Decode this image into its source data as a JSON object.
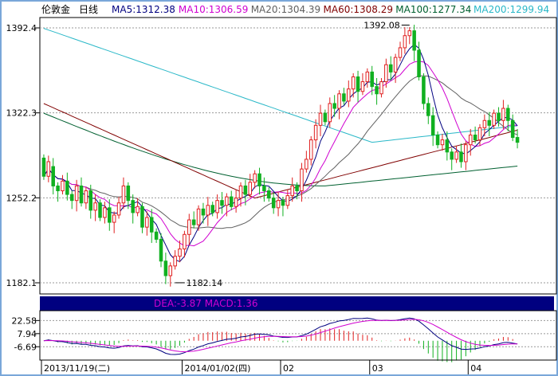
{
  "header": {
    "instrument": "伦敦金",
    "period": "日线",
    "ma": [
      {
        "label": "MA5:1312.38",
        "color": "#000080"
      },
      {
        "label": "MA10:1306.59",
        "color": "#d000d0"
      },
      {
        "label": "MA20:1304.39",
        "color": "#606060"
      },
      {
        "label": "MA60:1308.29",
        "color": "#800000"
      },
      {
        "label": "MA100:1277.34",
        "color": "#006030"
      },
      {
        "label": "MA200:1299.94",
        "color": "#2ab8c8"
      }
    ]
  },
  "chart_data": [
    {
      "type": "candlestick",
      "ylim": [
        1175,
        1405
      ],
      "y_ticks": [
        {
          "value": 1392.4,
          "label": "1392.4"
        },
        {
          "value": 1322.3,
          "label": "1322.3"
        },
        {
          "value": 1252.2,
          "label": "1252.2"
        },
        {
          "value": 1182.1,
          "label": "1182.1"
        }
      ],
      "x_ticks": [
        {
          "index": 0,
          "label": "2013/11/19(二)"
        },
        {
          "index": 30,
          "label": "2014/01/02(四)"
        },
        {
          "index": 51,
          "label": "02"
        },
        {
          "index": 70,
          "label": "03"
        },
        {
          "index": 91,
          "label": "04"
        }
      ],
      "annotations": [
        {
          "label": "1392.08",
          "index": 78,
          "value": 1392.08
        },
        {
          "label": "1182.14",
          "index": 28,
          "value": 1182.14
        }
      ],
      "candle_colors": {
        "up": "#e02020",
        "down": "#10b020"
      },
      "candles_o_c": [
        [
          1285,
          1270
        ],
        [
          1270,
          1282
        ],
        [
          1278,
          1262
        ],
        [
          1262,
          1258
        ],
        [
          1258,
          1266
        ],
        [
          1266,
          1255
        ],
        [
          1255,
          1250
        ],
        [
          1250,
          1262
        ],
        [
          1262,
          1248
        ],
        [
          1248,
          1258
        ],
        [
          1258,
          1242
        ],
        [
          1242,
          1248
        ],
        [
          1248,
          1236
        ],
        [
          1236,
          1244
        ],
        [
          1244,
          1232
        ],
        [
          1232,
          1238
        ],
        [
          1238,
          1248
        ],
        [
          1248,
          1262
        ],
        [
          1262,
          1250
        ],
        [
          1250,
          1240
        ],
        [
          1240,
          1245
        ],
        [
          1245,
          1228
        ],
        [
          1228,
          1236
        ],
        [
          1236,
          1224
        ],
        [
          1224,
          1218
        ],
        [
          1218,
          1200
        ],
        [
          1200,
          1188
        ],
        [
          1188,
          1196
        ],
        [
          1196,
          1204
        ],
        [
          1204,
          1210
        ],
        [
          1210,
          1222
        ],
        [
          1222,
          1234
        ],
        [
          1234,
          1230
        ],
        [
          1230,
          1243
        ],
        [
          1243,
          1238
        ],
        [
          1238,
          1246
        ],
        [
          1246,
          1240
        ],
        [
          1240,
          1250
        ],
        [
          1250,
          1246
        ],
        [
          1246,
          1253
        ],
        [
          1253,
          1245
        ],
        [
          1245,
          1252
        ],
        [
          1252,
          1262
        ],
        [
          1262,
          1255
        ],
        [
          1255,
          1265
        ],
        [
          1265,
          1272
        ],
        [
          1272,
          1262
        ],
        [
          1262,
          1258
        ],
        [
          1258,
          1252
        ],
        [
          1252,
          1244
        ],
        [
          1244,
          1250
        ],
        [
          1250,
          1246
        ],
        [
          1246,
          1254
        ],
        [
          1254,
          1262
        ],
        [
          1262,
          1258
        ],
        [
          1258,
          1276
        ],
        [
          1276,
          1284
        ],
        [
          1284,
          1300
        ],
        [
          1300,
          1312
        ],
        [
          1312,
          1322
        ],
        [
          1322,
          1315
        ],
        [
          1315,
          1330
        ],
        [
          1330,
          1326
        ],
        [
          1326,
          1338
        ],
        [
          1338,
          1332
        ],
        [
          1332,
          1342
        ],
        [
          1342,
          1352
        ],
        [
          1352,
          1340
        ],
        [
          1340,
          1348
        ],
        [
          1348,
          1356
        ],
        [
          1356,
          1344
        ],
        [
          1344,
          1338
        ],
        [
          1338,
          1348
        ],
        [
          1348,
          1362
        ],
        [
          1362,
          1356
        ],
        [
          1356,
          1368
        ],
        [
          1368,
          1376
        ],
        [
          1376,
          1386
        ],
        [
          1386,
          1390
        ],
        [
          1390,
          1374
        ],
        [
          1374,
          1352
        ],
        [
          1352,
          1330
        ],
        [
          1330,
          1320
        ],
        [
          1320,
          1304
        ],
        [
          1304,
          1296
        ],
        [
          1296,
          1300
        ],
        [
          1300,
          1290
        ],
        [
          1290,
          1284
        ],
        [
          1284,
          1290
        ],
        [
          1290,
          1282
        ],
        [
          1282,
          1296
        ],
        [
          1296,
          1304
        ],
        [
          1304,
          1300
        ],
        [
          1300,
          1310
        ],
        [
          1310,
          1316
        ],
        [
          1316,
          1312
        ],
        [
          1312,
          1322
        ],
        [
          1322,
          1316
        ],
        [
          1316,
          1326
        ],
        [
          1326,
          1316
        ],
        [
          1316,
          1302
        ],
        [
          1302,
          1298
        ]
      ]
    },
    {
      "type": "macd",
      "label": "DEA:-3.87  MACD:1.36",
      "ylim": [
        -18,
        30
      ],
      "y_ticks": [
        {
          "value": 22.58,
          "label": "22.58"
        },
        {
          "value": 7.94,
          "label": "7.94"
        },
        {
          "value": -6.69,
          "label": "-6.69"
        }
      ]
    }
  ]
}
